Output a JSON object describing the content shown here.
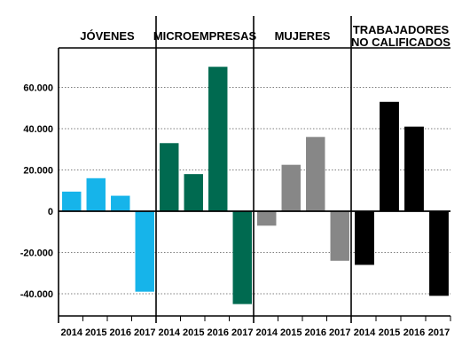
{
  "chart_data": {
    "type": "bar",
    "ylim": [
      -50000,
      75000
    ],
    "yticks": [
      {
        "value": 60000,
        "label": "60.000"
      },
      {
        "value": 40000,
        "label": "40.000"
      },
      {
        "value": 20000,
        "label": "20.000"
      },
      {
        "value": 0,
        "label": "0"
      },
      {
        "value": -20000,
        "label": "-20.000"
      },
      {
        "value": -40000,
        "label": "-40.000"
      }
    ],
    "categories": [
      "2014",
      "2015",
      "2016",
      "2017"
    ],
    "grid": true,
    "panels": [
      {
        "title": [
          "JÓVENES"
        ],
        "color": "#16b4ea",
        "values": [
          9500,
          16000,
          7500,
          -39000
        ]
      },
      {
        "title": [
          "MICROEMPRESAS"
        ],
        "color": "#006a50",
        "values": [
          33000,
          18000,
          70000,
          -45000
        ]
      },
      {
        "title": [
          "MUJERES"
        ],
        "color": "#878787",
        "values": [
          -7000,
          22500,
          36000,
          -24000
        ]
      },
      {
        "title": [
          "TRABAJADORES",
          "NO CALIFICADOS"
        ],
        "color": "#000000",
        "values": [
          -26000,
          53000,
          41000,
          -41000
        ]
      }
    ]
  }
}
